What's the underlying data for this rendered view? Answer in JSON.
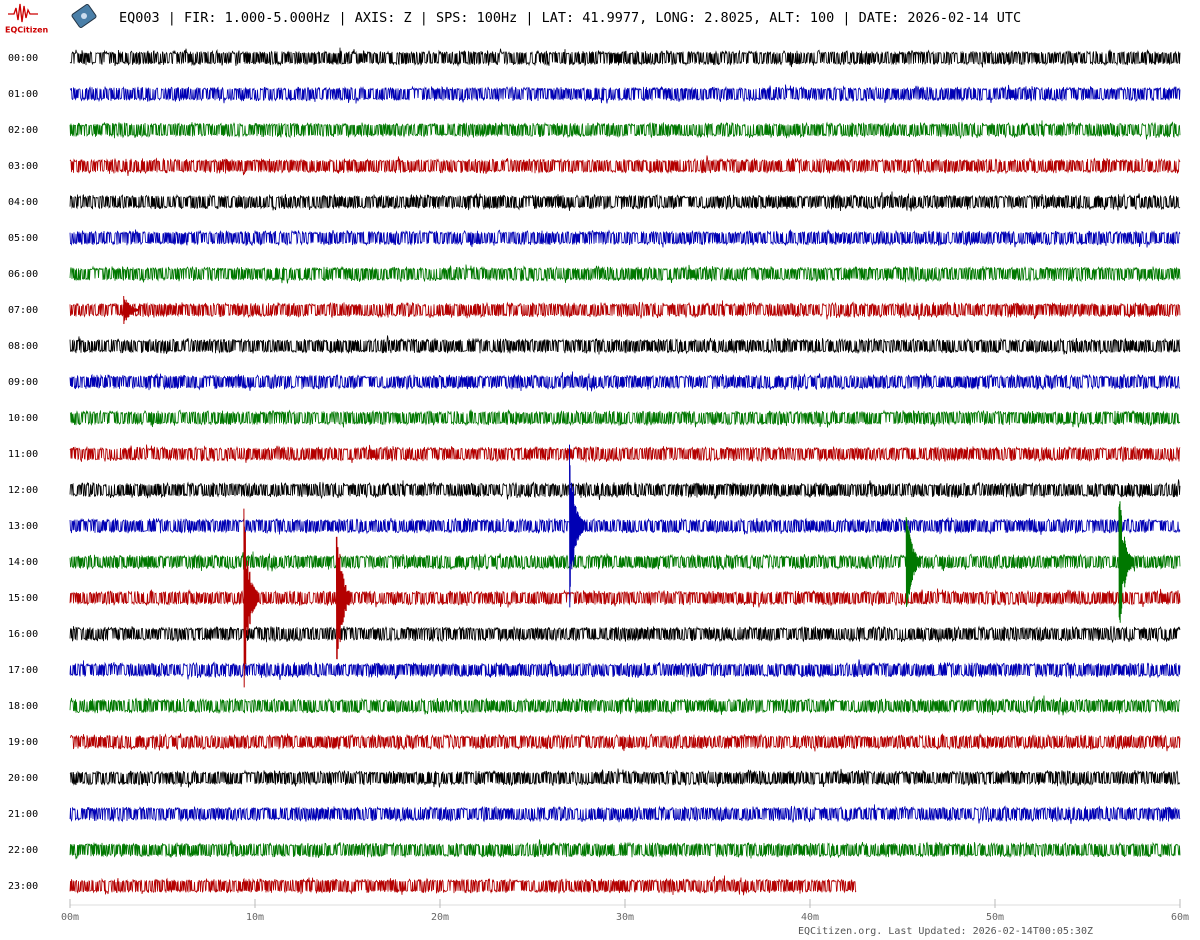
{
  "header": {
    "logo": "EQCitizen",
    "title": "EQ003 | FIR: 1.000-5.000Hz | AXIS: Z | SPS: 100Hz | LAT: 41.9977, LONG: 2.8025, ALT: 100 | DATE: 2026-02-14 UTC"
  },
  "chart_data": {
    "type": "helicorder",
    "categories": [
      "00:00",
      "01:00",
      "02:00",
      "03:00",
      "04:00",
      "05:00",
      "06:00",
      "07:00",
      "08:00",
      "09:00",
      "10:00",
      "11:00",
      "12:00",
      "13:00",
      "14:00",
      "15:00",
      "16:00",
      "17:00",
      "18:00",
      "19:00",
      "20:00",
      "21:00",
      "22:00",
      "23:00"
    ],
    "colors": [
      "#000000",
      "#0000b4",
      "#007800",
      "#b40000"
    ],
    "xlim": [
      0,
      60
    ],
    "xticks": [
      {
        "value": 0,
        "label": "00m"
      },
      {
        "value": 10,
        "label": "10m"
      },
      {
        "value": 20,
        "label": "20m"
      },
      {
        "value": 30,
        "label": "30m"
      },
      {
        "value": 40,
        "label": "40m"
      },
      {
        "value": 50,
        "label": "50m"
      },
      {
        "value": 60,
        "label": "60m"
      }
    ],
    "last_trace_end": 42.5,
    "events": [
      {
        "row": 7,
        "minute": 2.9,
        "amplitude": 0.55
      },
      {
        "row": 13,
        "minute": 27.0,
        "amplitude": 2.5
      },
      {
        "row": 15,
        "minute": 9.4,
        "amplitude": 2.5
      },
      {
        "row": 15,
        "minute": 14.4,
        "amplitude": 2.5
      },
      {
        "row": 14,
        "minute": 45.2,
        "amplitude": 1.7
      },
      {
        "row": 14,
        "minute": 56.7,
        "amplitude": 2.2
      }
    ]
  },
  "footer": "EQCitizen.org. Last Updated: 2026-02-14T00:05:30Z"
}
